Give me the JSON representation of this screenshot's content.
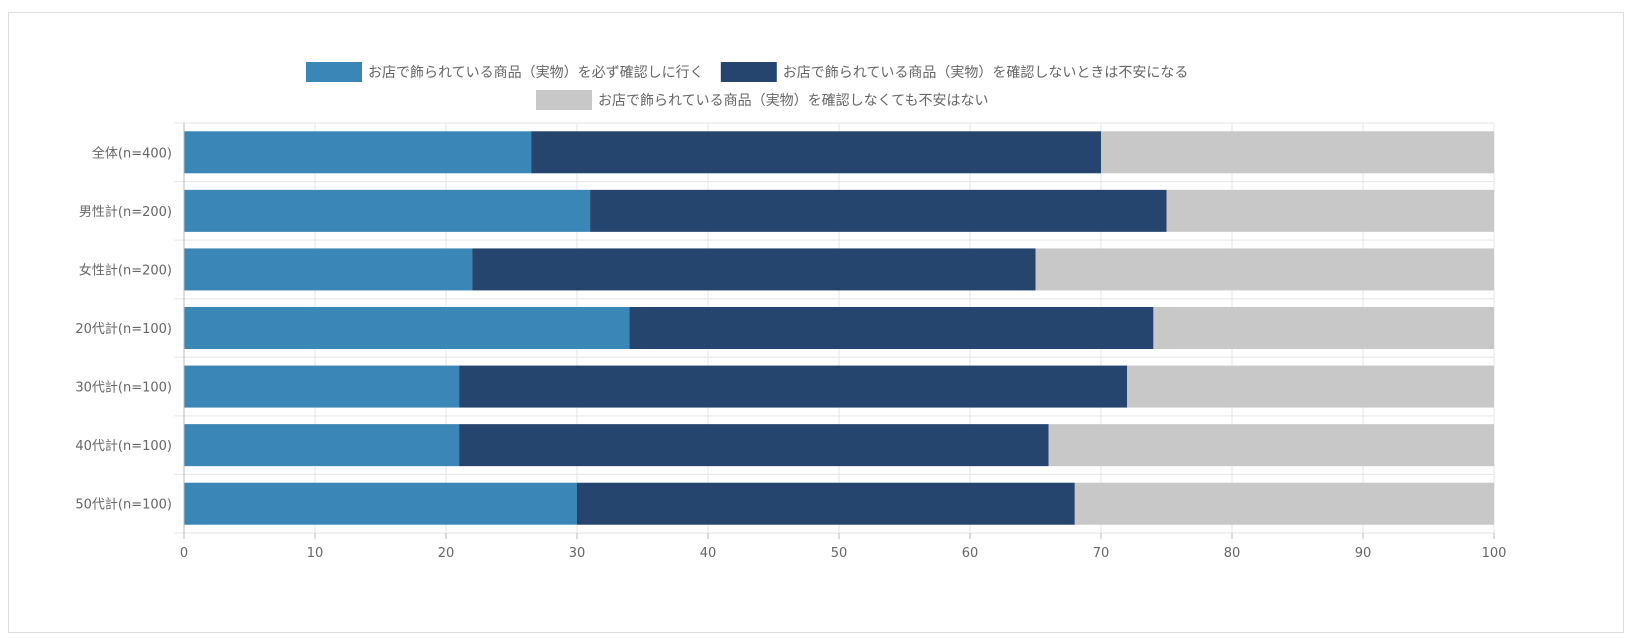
{
  "chart_data": {
    "type": "bar",
    "orientation": "horizontal",
    "stacked": true,
    "categories": [
      "全体(n=400)",
      "男性計(n=200)",
      "女性計(n=200)",
      "20代計(n=100)",
      "30代計(n=100)",
      "40代計(n=100)",
      "50代計(n=100)"
    ],
    "series": [
      {
        "name": "お店で飾られている商品（実物）を必ず確認しに行く",
        "color": "#3a86b6",
        "values": [
          26.5,
          31,
          22,
          34,
          21,
          21,
          30
        ]
      },
      {
        "name": "お店で飾られている商品（実物）を確認しないときは不安になる",
        "color": "#26456e",
        "values": [
          43.5,
          44,
          43,
          40,
          51,
          45,
          38
        ]
      },
      {
        "name": "お店で飾られている商品（実物）を確認しなくても不安はない",
        "color": "#c8c8c8",
        "values": [
          30,
          25,
          35,
          26,
          28,
          34,
          32
        ]
      }
    ],
    "xlim": [
      0,
      100
    ],
    "x_ticks": [
      "0",
      "10",
      "20",
      "30",
      "40",
      "50",
      "60",
      "70",
      "80",
      "90",
      "100"
    ],
    "grid": true,
    "legend_position": "top-center"
  }
}
